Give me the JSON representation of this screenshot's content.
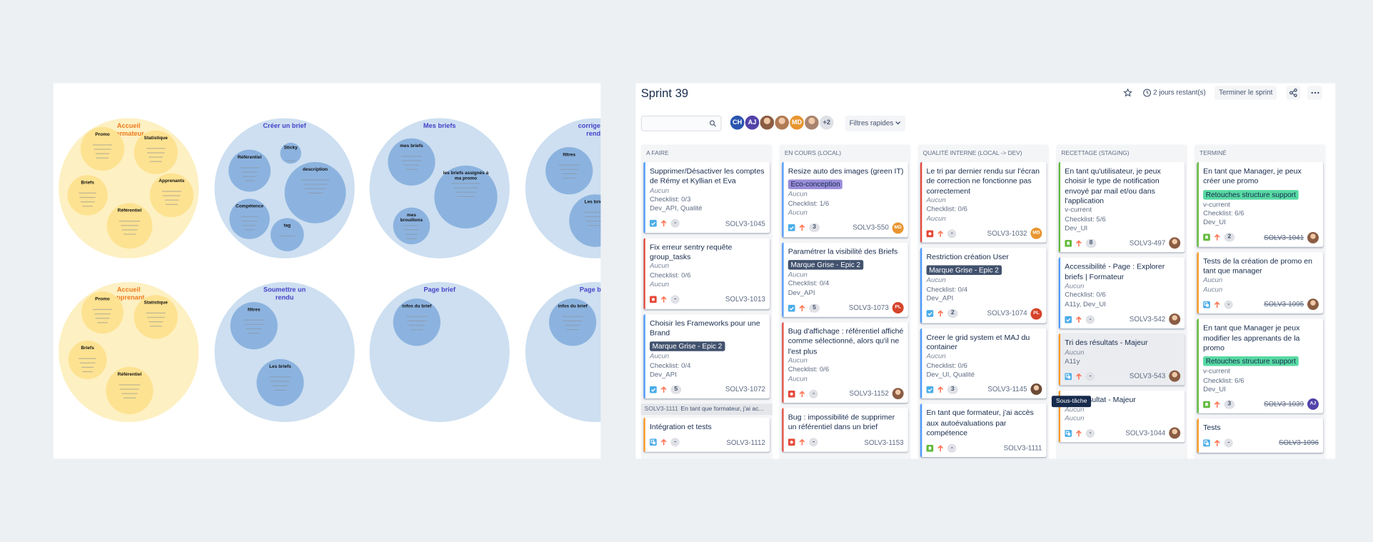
{
  "whiteboard": {
    "frames": [
      {
        "title": "Accueil formateur",
        "theme": "yellow",
        "bubbles": [
          "Promo",
          "Statistique",
          "Briefs",
          "Apprenants",
          "Référentiel"
        ]
      },
      {
        "title": "Créer un brief",
        "theme": "blue",
        "bubbles": [
          "Sticky",
          "Référentiel",
          "description",
          "Compétence",
          "tag"
        ]
      },
      {
        "title": "Mes briefs",
        "theme": "blue",
        "bubbles": [
          "mes briefs",
          "les briefs assignés à ma promo",
          "mes brouillons"
        ]
      },
      {
        "title": "corriger un rendu",
        "theme": "blue",
        "bubbles": [
          "filtres",
          "Les briefs"
        ]
      },
      {
        "title": "Accueil apprenant",
        "theme": "yellow",
        "bubbles": [
          "Promo",
          "Statistique",
          "Briefs",
          "Référentiel"
        ]
      },
      {
        "title": "Soumettre un rendu",
        "theme": "blue",
        "bubbles": [
          "filtres",
          "Les briefs"
        ]
      },
      {
        "title": "Page brief",
        "theme": "blue",
        "bubbles": [
          "infos du brief"
        ]
      },
      {
        "title": "Page brief",
        "theme": "blue",
        "bubbles": [
          "infos du brief"
        ]
      }
    ]
  },
  "sprint": {
    "title": "Sprint 39",
    "time_left": "2 jours restant(s)",
    "complete_button": "Terminer le sprint",
    "quick_filters": "Filtres rapides",
    "avatars": [
      {
        "initials": "CH",
        "color": "#2a55b0"
      },
      {
        "initials": "AJ",
        "color": "#5243aa"
      },
      {
        "color": "#8a5d43"
      },
      {
        "color": "#b07a55"
      },
      {
        "initials": "MD",
        "color": "#e8952f"
      },
      {
        "color": "#a88470"
      }
    ],
    "more_avatars": "+2",
    "tooltip": "Sous-tâche",
    "columns": [
      {
        "name": "A FAIRE",
        "cards": [
          {
            "title": "Supprimer/Désactiver les comptes de Rémy et Kyllian et Eva",
            "type": "task",
            "border": "#4c9aff",
            "lines": [
              {
                "text": "Aucun",
                "italic": true
              },
              "Checklist: 0/3",
              "Dev_API, Qualité"
            ],
            "estimate": "-",
            "key": "SOLV3-1045"
          },
          {
            "title": "Fix erreur sentry requête group_tasks",
            "type": "bug",
            "border": "#e5493a",
            "lines": [
              {
                "text": "Aucun",
                "italic": true
              },
              "Checklist: 0/6",
              {
                "text": "Aucun",
                "italic": true
              }
            ],
            "estimate": "-",
            "key": "SOLV3-1013"
          },
          {
            "title": "Choisir les Frameworks pour une Brand",
            "type": "task",
            "border": "#4c9aff",
            "epic": {
              "name": "Marque Grise - Epic 2",
              "color": "#42526e",
              "text_color": "#ffffff"
            },
            "lines": [
              {
                "text": "Aucun",
                "italic": true
              },
              "Checklist: 0/4",
              "Dev_API"
            ],
            "estimate": "5",
            "key": "SOLV3-1072"
          }
        ],
        "subgroup": {
          "key": "SOLV3-1111",
          "summary": "En tant que formateur, j'ai ac...",
          "cards": [
            {
              "title": "Intégration et tests",
              "type": "subtask",
              "border": "#ff991f",
              "lines": [],
              "estimate": "-",
              "key": "SOLV3-1112"
            }
          ]
        }
      },
      {
        "name": "EN COURS (LOCAL)",
        "cards": [
          {
            "title": "Resize auto des images (green IT)",
            "type": "task",
            "border": "#4c9aff",
            "epic": {
              "name": "Eco-conception",
              "color": "#998dd9",
              "text_color": "#172b4d"
            },
            "lines": [
              {
                "text": "Aucun",
                "italic": true
              },
              "Checklist: 1/6",
              {
                "text": "Aucun",
                "italic": true
              }
            ],
            "estimate": "3",
            "key": "SOLV3-550",
            "avatar": {
              "initials": "MD",
              "color": "#e8952f"
            }
          },
          {
            "title": "Paramétrer la visibilité des Briefs",
            "type": "task",
            "border": "#4c9aff",
            "epic": {
              "name": "Marque Grise - Epic 2",
              "color": "#42526e",
              "text_color": "#ffffff"
            },
            "lines": [
              {
                "text": "Aucun",
                "italic": true
              },
              "Checklist: 0/4",
              "Dev_API"
            ],
            "estimate": "5",
            "key": "SOLV3-1073",
            "avatar": {
              "initials": "PL",
              "color": "#d6432a"
            }
          },
          {
            "title": "Bug d'affichage : référentiel affiché comme sélectionné, alors qu'il ne l'est plus",
            "type": "bug",
            "border": "#e5493a",
            "lines": [
              {
                "text": "Aucun",
                "italic": true
              },
              "Checklist: 0/6",
              {
                "text": "Aucun",
                "italic": true
              }
            ],
            "estimate": "-",
            "key": "SOLV3-1152",
            "avatar": {
              "color": "#8a5d43"
            }
          },
          {
            "title": "Bug : impossibilité de supprimer un référentiel dans un brief",
            "type": "bug",
            "border": "#e5493a",
            "lines": [],
            "estimate": "-",
            "key": "SOLV3-1153"
          }
        ]
      },
      {
        "name": "QUALITÉ INTERNE (LOCAL -> DEV)",
        "cards": [
          {
            "title": "Le tri par dernier rendu sur l'écran de correction ne fonctionne pas correctement",
            "type": "bug",
            "border": "#e5493a",
            "lines": [
              {
                "text": "Aucun",
                "italic": true
              },
              "Checklist: 0/6",
              {
                "text": "Aucun",
                "italic": true
              }
            ],
            "estimate": "-",
            "key": "SOLV3-1032",
            "avatar": {
              "initials": "MD",
              "color": "#e8952f"
            }
          },
          {
            "title": "Restriction création User",
            "type": "task",
            "border": "#4c9aff",
            "epic": {
              "name": "Marque Grise - Epic 2",
              "color": "#42526e",
              "text_color": "#ffffff"
            },
            "lines": [
              {
                "text": "Aucun",
                "italic": true
              },
              "Checklist: 0/4",
              "Dev_API"
            ],
            "estimate": "2",
            "key": "SOLV3-1074",
            "avatar": {
              "initials": "PL",
              "color": "#d6432a"
            }
          },
          {
            "title": "Creer le grid system et MAJ du container",
            "type": "task",
            "border": "#4c9aff",
            "lines": [
              {
                "text": "Aucun",
                "italic": true
              },
              "Checklist: 0/6",
              "Dev_UI, Qualité"
            ],
            "estimate": "3",
            "key": "SOLV3-1145",
            "avatar": {
              "color": "#6b4a36"
            }
          },
          {
            "title": "En tant que formateur, j'ai accès aux autoévaluations par compétence",
            "type": "story",
            "border": "#4c9aff",
            "lines": [],
            "estimate": "-",
            "key": "SOLV3-1111"
          }
        ]
      },
      {
        "name": "RECETTAGE (STAGING)",
        "cards": [
          {
            "title": "En tant qu'utilisateur, je peux choisir le type de notification envoyé par mail et/ou dans l'application",
            "type": "story",
            "border": "#63ba3c",
            "lines": [
              "v-current",
              "Checklist: 5/6",
              "Dev_UI"
            ],
            "estimate": "8",
            "key": "SOLV3-497",
            "avatar": {
              "color": "#8a5d43"
            }
          },
          {
            "title": "Accessibilité - Page : Explorer briefs | Formateur",
            "type": "task",
            "border": "#4c9aff",
            "lines": [
              {
                "text": "Aucun",
                "italic": true
              },
              "Checklist: 0/6",
              "A11y, Dev_UI"
            ],
            "estimate": "-",
            "key": "SOLV3-542",
            "avatar": {
              "color": "#8a5d43"
            }
          },
          {
            "title": "Tri des résultats - Majeur",
            "type": "subtask",
            "border": "#ff991f",
            "hovered": true,
            "lines": [
              {
                "text": "Aucun",
                "italic": true
              },
              "A11y"
            ],
            "estimate": "-",
            "key": "SOLV3-543",
            "avatar": {
              "color": "#8a5d43"
            }
          },
          {
            "title": "Bloc résultat - Majeur",
            "type": "subtask",
            "border": "#ff991f",
            "lines": [
              {
                "text": "Aucun",
                "italic": true
              },
              {
                "text": "Aucun",
                "italic": true
              }
            ],
            "estimate": "-",
            "key": "SOLV3-1044",
            "avatar": {
              "color": "#8a5d43"
            }
          }
        ]
      },
      {
        "name": "TERMINÉ",
        "done": true,
        "cards": [
          {
            "title": "En tant que Manager, je peux créer une promo",
            "type": "story",
            "border": "#63ba3c",
            "epic": {
              "name": "Retouches structure support",
              "color": "#57d9a3",
              "text_color": "#172b4d"
            },
            "lines": [
              "v-current",
              "Checklist: 6/6",
              "Dev_UI"
            ],
            "estimate": "2",
            "key": "SOLV3-1041",
            "avatar": {
              "color": "#8a5d43"
            }
          },
          {
            "title": "Tests de la création de promo en tant que manager",
            "type": "subtask",
            "border": "#ff991f",
            "lines": [
              {
                "text": "Aucun",
                "italic": true
              },
              {
                "text": "Aucun",
                "italic": true
              }
            ],
            "estimate": "-",
            "key": "SOLV3-1095",
            "avatar": {
              "color": "#8a5d43"
            }
          },
          {
            "title": "En tant que Manager je peux modifier les apprenants de la promo",
            "type": "story",
            "border": "#63ba3c",
            "epic": {
              "name": "Retouches structure support",
              "color": "#57d9a3",
              "text_color": "#172b4d"
            },
            "lines": [
              "v-current",
              "Checklist: 6/6",
              "Dev_UI"
            ],
            "estimate": "3",
            "key": "SOLV3-1039",
            "avatar": {
              "initials": "AJ",
              "color": "#5243aa"
            }
          },
          {
            "title": "Tests",
            "type": "subtask",
            "border": "#ff991f",
            "lines": [],
            "estimate": "-",
            "key": "SOLV3-1096"
          }
        ]
      }
    ]
  }
}
